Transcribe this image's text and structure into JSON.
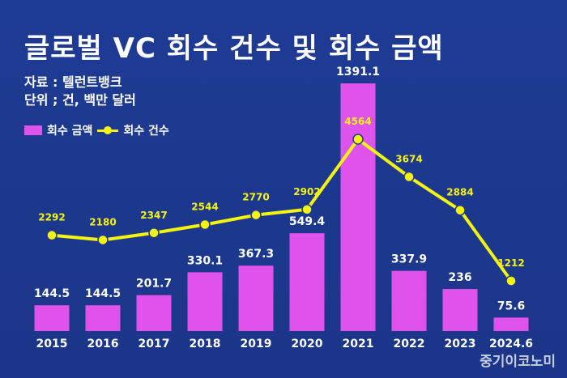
{
  "title": "글로벌 VC 회수 건수 및 회수 금액",
  "source": "자료 : 텔런트뱅크",
  "unit": "단위 ; 건, 백만 달러",
  "credit": "중기이코노미",
  "legend": {
    "bar_label": "회수 금액",
    "line_label": "회수 건수"
  },
  "colors": {
    "background": "#1e3b94",
    "bar": "#e052ec",
    "line": "#f4f40f",
    "line_label": "#f4f40f",
    "text": "#ffffff"
  },
  "chart_data": {
    "type": "bar",
    "categories": [
      "2015",
      "2016",
      "2017",
      "2018",
      "2019",
      "2020",
      "2021",
      "2022",
      "2023",
      "2024.6"
    ],
    "series": [
      {
        "name": "회수 금액",
        "type": "bar",
        "values": [
          144.5,
          144.5,
          201.7,
          330.1,
          367.3,
          549.4,
          1391.1,
          337.9,
          236,
          75.6
        ],
        "labels": [
          "144.5",
          "144.5",
          "201.7",
          "330.1",
          "367.3",
          "549.4",
          "1391.1",
          "337.9",
          "236",
          "75.6"
        ]
      },
      {
        "name": "회수 건수",
        "type": "line",
        "values": [
          2292,
          2180,
          2347,
          2544,
          2770,
          2902,
          4564,
          3674,
          2884,
          1212
        ],
        "labels": [
          "2292",
          "2180",
          "2347",
          "2544",
          "2770",
          "2902",
          "4564",
          "3674",
          "2884",
          "1212"
        ]
      }
    ],
    "title": "글로벌 VC 회수 건수 및 회수 금액",
    "legend_position": "top-left",
    "grid": false
  }
}
